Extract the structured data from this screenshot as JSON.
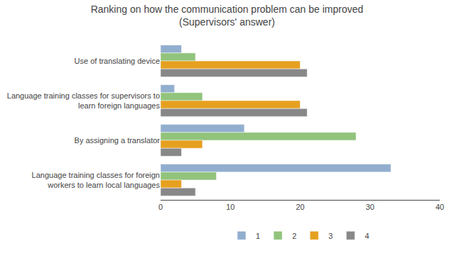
{
  "chart_data": {
    "type": "bar",
    "orientation": "horizontal",
    "title": "Ranking on how the communication problem can be improved\n(Supervisors' answer)",
    "categories": [
      "Use of translating device",
      "Language training classes for supervisors to\nlearn foreign languages",
      "By assigning a translator",
      "Language training classes for foreign\nworkers to learn local languages"
    ],
    "series": [
      {
        "name": "1",
        "color": "#92AECF",
        "values": [
          3,
          2,
          12,
          33
        ]
      },
      {
        "name": "2",
        "color": "#92C47C",
        "values": [
          5,
          6,
          28,
          8
        ]
      },
      {
        "name": "3",
        "color": "#E6A020",
        "values": [
          20,
          20,
          6,
          3
        ]
      },
      {
        "name": "4",
        "color": "#888888",
        "values": [
          21,
          21,
          3,
          5
        ]
      }
    ],
    "xlim": [
      0,
      40
    ],
    "xticks": [
      0,
      10,
      20,
      30,
      40
    ],
    "grid": false,
    "legend": "bottom"
  }
}
